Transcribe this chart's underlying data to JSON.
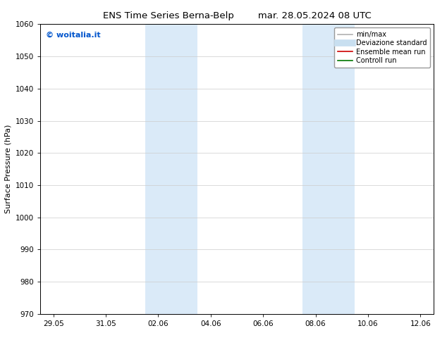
{
  "title_left": "ENS Time Series Berna-Belp",
  "title_right": "mar. 28.05.2024 08 UTC",
  "ylabel": "Surface Pressure (hPa)",
  "ylim": [
    970,
    1060
  ],
  "yticks": [
    970,
    980,
    990,
    1000,
    1010,
    1020,
    1030,
    1040,
    1050,
    1060
  ],
  "xtick_labels": [
    "29.05",
    "31.05",
    "02.06",
    "04.06",
    "06.06",
    "08.06",
    "10.06",
    "12.06"
  ],
  "xtick_positions": [
    0,
    2,
    4,
    6,
    8,
    10,
    12,
    14
  ],
  "xlim": [
    -0.5,
    14.5
  ],
  "shaded_regions": [
    {
      "x_start": 3.5,
      "x_end": 5.5,
      "color": "#daeaf8"
    },
    {
      "x_start": 9.5,
      "x_end": 11.5,
      "color": "#daeaf8"
    }
  ],
  "watermark_text": "© woitalia.it",
  "watermark_color": "#0055cc",
  "legend_entries": [
    {
      "label": "min/max",
      "color": "#b0b0b0",
      "lw": 1.2,
      "ls": "-"
    },
    {
      "label": "Deviazione standard",
      "color": "#c8dff0",
      "lw": 7,
      "ls": "-"
    },
    {
      "label": "Ensemble mean run",
      "color": "#cc0000",
      "lw": 1.2,
      "ls": "-"
    },
    {
      "label": "Controll run",
      "color": "#007700",
      "lw": 1.2,
      "ls": "-"
    }
  ],
  "title_fontsize": 9.5,
  "axis_fontsize": 8,
  "tick_fontsize": 7.5,
  "legend_fontsize": 7,
  "bg_color": "#ffffff",
  "spine_color": "#000000",
  "grid_color": "#cccccc"
}
